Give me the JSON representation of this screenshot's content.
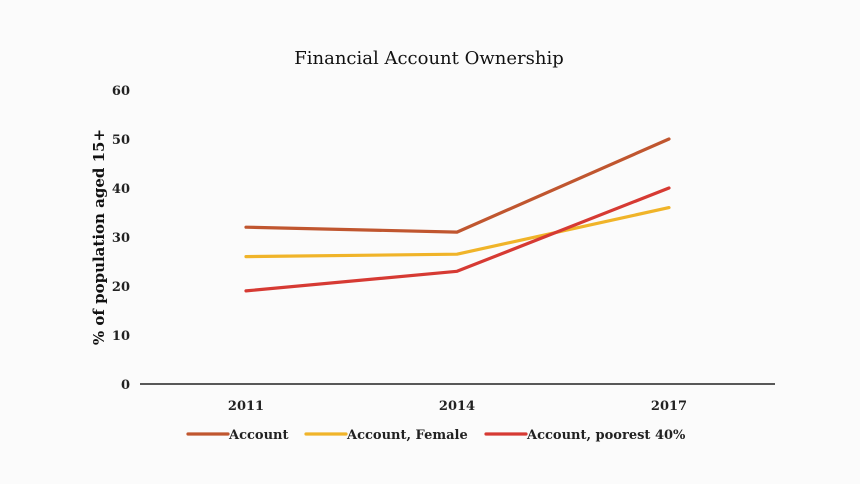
{
  "chart_data": {
    "type": "line",
    "title": "Financial Account Ownership",
    "xlabel": "",
    "ylabel": "% of population aged 15+",
    "categories": [
      "2011",
      "2014",
      "2017"
    ],
    "ylim": [
      0,
      60
    ],
    "yticks": [
      0,
      10,
      20,
      30,
      40,
      50,
      60
    ],
    "grid": false,
    "legend_position": "bottom",
    "series": [
      {
        "name": "Account",
        "values": [
          32,
          31,
          50
        ],
        "color": "#c0562f"
      },
      {
        "name": "Account, Female",
        "values": [
          26,
          26.5,
          36
        ],
        "color": "#f0b429"
      },
      {
        "name": "Account, poorest 40%",
        "values": [
          19,
          23,
          40
        ],
        "color": "#d63a33"
      }
    ]
  }
}
